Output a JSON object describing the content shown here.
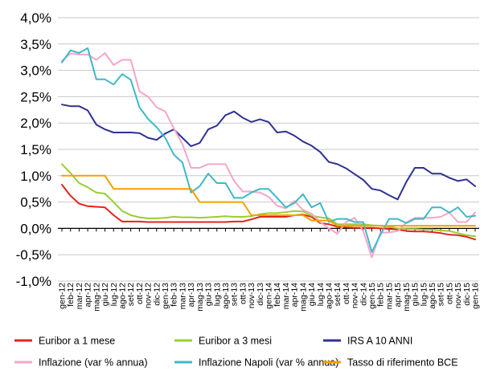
{
  "chart_data": {
    "type": "line",
    "title": "",
    "xlabel": "",
    "ylabel": "",
    "ylim": [
      -1.0,
      4.0
    ],
    "yticks": [
      -1.0,
      -0.5,
      0.0,
      0.5,
      1.0,
      1.5,
      2.0,
      2.5,
      3.0,
      3.5,
      4.0
    ],
    "ytick_labels": [
      "-1,0%",
      "-0,5%",
      "0,0%",
      "0,5%",
      "1,0%",
      "1,5%",
      "2,0%",
      "2,5%",
      "3,0%",
      "3,5%",
      "4,0%"
    ],
    "grid": "horizontal",
    "legend_position": "bottom",
    "categories": [
      "gen-12",
      "feb-12",
      "mar-12",
      "apr-12",
      "mag-12",
      "giu-12",
      "lug-12",
      "ago-12",
      "set-12",
      "ott-12",
      "nov-12",
      "dic-12",
      "gen-13",
      "feb-13",
      "mar-13",
      "apr-13",
      "mag-13",
      "giu-13",
      "lug-13",
      "ago-13",
      "set-13",
      "ott-13",
      "nov-13",
      "dic-13",
      "gen-14",
      "feb-14",
      "mar-14",
      "apr-14",
      "mag-14",
      "giu-14",
      "lug-14",
      "ago-14",
      "set-14",
      "ott-14",
      "nov-14",
      "dic-14",
      "gen-15",
      "feb-15",
      "mar-15",
      "apr-15",
      "mag-15",
      "giu-15",
      "lug-15",
      "ago-15",
      "set-15",
      "ott-15",
      "nov-15",
      "dic-15",
      "gen-16"
    ],
    "series": [
      {
        "name": "Euribor a 1 mese",
        "color": "#e3241b",
        "values": [
          0.83,
          0.62,
          0.47,
          0.42,
          0.41,
          0.4,
          0.25,
          0.13,
          0.13,
          0.13,
          0.12,
          0.12,
          0.12,
          0.12,
          0.12,
          0.12,
          0.12,
          0.12,
          0.12,
          0.12,
          0.13,
          0.13,
          0.17,
          0.22,
          0.22,
          0.22,
          0.22,
          0.25,
          0.26,
          0.22,
          0.1,
          0.08,
          0.03,
          0.02,
          0.01,
          0.01,
          0.01,
          0.0,
          -0.01,
          -0.02,
          -0.05,
          -0.06,
          -0.06,
          -0.07,
          -0.09,
          -0.12,
          -0.13,
          -0.16,
          -0.21
        ]
      },
      {
        "name": "Euribor a 3 mesi",
        "color": "#9acd32",
        "values": [
          1.22,
          1.05,
          0.86,
          0.78,
          0.68,
          0.66,
          0.5,
          0.33,
          0.25,
          0.21,
          0.19,
          0.19,
          0.2,
          0.22,
          0.21,
          0.21,
          0.2,
          0.21,
          0.22,
          0.23,
          0.22,
          0.22,
          0.23,
          0.27,
          0.29,
          0.29,
          0.31,
          0.33,
          0.32,
          0.24,
          0.21,
          0.19,
          0.08,
          0.08,
          0.08,
          0.08,
          0.06,
          0.05,
          0.03,
          0.0,
          -0.01,
          -0.01,
          -0.02,
          -0.02,
          -0.04,
          -0.05,
          -0.09,
          -0.13,
          -0.15
        ]
      },
      {
        "name": "IRS A 10 ANNI",
        "color": "#2e3192",
        "values": [
          2.35,
          2.32,
          2.32,
          2.24,
          1.97,
          1.88,
          1.82,
          1.82,
          1.82,
          1.81,
          1.72,
          1.68,
          1.8,
          1.88,
          1.72,
          1.56,
          1.62,
          1.88,
          1.95,
          2.15,
          2.22,
          2.1,
          2.02,
          2.07,
          2.02,
          1.82,
          1.84,
          1.76,
          1.65,
          1.57,
          1.45,
          1.26,
          1.22,
          1.14,
          1.03,
          0.92,
          0.75,
          0.72,
          0.63,
          0.55,
          0.88,
          1.15,
          1.15,
          1.04,
          1.04,
          0.96,
          0.9,
          0.93,
          0.8
        ]
      },
      {
        "name": "Inflazione (var % annua)",
        "color": "#f4a6c8",
        "values": [
          3.18,
          3.32,
          3.3,
          3.3,
          3.2,
          3.33,
          3.1,
          3.2,
          3.2,
          2.6,
          2.5,
          2.3,
          2.22,
          1.9,
          1.6,
          1.15,
          1.15,
          1.22,
          1.22,
          1.22,
          0.9,
          0.7,
          0.7,
          0.68,
          0.6,
          0.43,
          0.38,
          0.52,
          0.35,
          0.28,
          0.12,
          0.0,
          -0.1,
          0.12,
          0.2,
          -0.05,
          -0.55,
          -0.08,
          -0.08,
          -0.05,
          0.11,
          0.2,
          0.2,
          0.2,
          0.22,
          0.3,
          0.12,
          0.12,
          0.3
        ]
      },
      {
        "name": "Inflazione Napoli (var % annua)",
        "color": "#3fb8c8",
        "values": [
          3.15,
          3.38,
          3.33,
          3.42,
          2.83,
          2.83,
          2.73,
          2.93,
          2.82,
          2.3,
          2.08,
          1.92,
          1.72,
          1.4,
          1.25,
          0.68,
          0.8,
          1.04,
          0.86,
          0.86,
          0.58,
          0.58,
          0.68,
          0.75,
          0.75,
          0.58,
          0.4,
          0.48,
          0.65,
          0.4,
          0.48,
          0.12,
          0.18,
          0.18,
          0.12,
          0.12,
          -0.45,
          -0.12,
          0.18,
          0.18,
          0.1,
          0.18,
          0.18,
          0.4,
          0.4,
          0.3,
          0.4,
          0.22,
          0.24
        ]
      },
      {
        "name": "Tasso di riferimento BCE",
        "color": "#f5a000",
        "values": [
          1.0,
          1.0,
          1.0,
          1.0,
          1.0,
          1.0,
          0.75,
          0.75,
          0.75,
          0.75,
          0.75,
          0.75,
          0.75,
          0.75,
          0.75,
          0.75,
          0.5,
          0.5,
          0.5,
          0.5,
          0.5,
          0.5,
          0.25,
          0.25,
          0.25,
          0.25,
          0.25,
          0.25,
          0.25,
          0.15,
          0.15,
          0.15,
          0.05,
          0.05,
          0.05,
          0.05,
          0.05,
          0.05,
          0.05,
          0.05,
          0.05,
          0.05,
          0.05,
          0.05,
          0.05,
          0.05,
          0.05,
          0.05,
          0.05
        ]
      }
    ]
  }
}
